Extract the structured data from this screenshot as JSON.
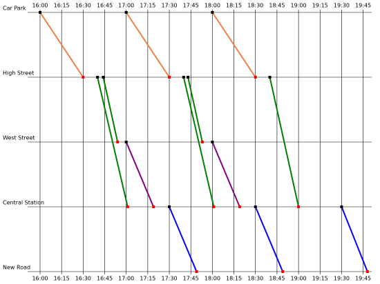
{
  "chart_data": {
    "type": "timetable",
    "categories": [
      "Car Park",
      "High Street",
      "West Street",
      "Central Station",
      "New Road"
    ],
    "xlim": [
      960,
      1190
    ],
    "xticks": [
      {
        "value": 960,
        "label": "16:00"
      },
      {
        "value": 975,
        "label": "16:15"
      },
      {
        "value": 990,
        "label": "16:30"
      },
      {
        "value": 1005,
        "label": "16:45"
      },
      {
        "value": 1020,
        "label": "17:00"
      },
      {
        "value": 1035,
        "label": "17:15"
      },
      {
        "value": 1050,
        "label": "17:30"
      },
      {
        "value": 1065,
        "label": "17:45"
      },
      {
        "value": 1080,
        "label": "18:00"
      },
      {
        "value": 1095,
        "label": "18:15"
      },
      {
        "value": 1110,
        "label": "18:30"
      },
      {
        "value": 1125,
        "label": "18:45"
      },
      {
        "value": 1140,
        "label": "19:00"
      },
      {
        "value": 1155,
        "label": "19:15"
      },
      {
        "value": 1170,
        "label": "19:30"
      },
      {
        "value": 1185,
        "label": "19:45"
      }
    ],
    "grid": true,
    "start_color": "#000000",
    "end_color": "#ff0000",
    "series": [
      {
        "color": "#f07f3c",
        "x": [
          960,
          990
        ],
        "values": [
          0,
          1
        ]
      },
      {
        "color": "#f07f3c",
        "x": [
          1020,
          1050
        ],
        "values": [
          0,
          1
        ]
      },
      {
        "color": "#f07f3c",
        "x": [
          1080,
          1110
        ],
        "values": [
          0,
          1
        ]
      },
      {
        "color": "#008000",
        "x": [
          1000,
          1021
        ],
        "values": [
          1,
          3
        ]
      },
      {
        "color": "#008000",
        "x": [
          1004,
          1014
        ],
        "values": [
          1,
          2
        ]
      },
      {
        "color": "#008000",
        "x": [
          1060,
          1081
        ],
        "values": [
          1,
          3
        ]
      },
      {
        "color": "#008000",
        "x": [
          1063,
          1073
        ],
        "values": [
          1,
          2
        ]
      },
      {
        "color": "#008000",
        "x": [
          1120,
          1140
        ],
        "values": [
          1,
          3
        ]
      },
      {
        "color": "#800080",
        "x": [
          1020,
          1039
        ],
        "values": [
          2,
          3
        ]
      },
      {
        "color": "#800080",
        "x": [
          1080,
          1099
        ],
        "values": [
          2,
          3
        ]
      },
      {
        "color": "#0000ff",
        "x": [
          1050,
          1069
        ],
        "values": [
          3,
          4
        ]
      },
      {
        "color": "#0000ff",
        "x": [
          1110,
          1129
        ],
        "values": [
          3,
          4
        ]
      },
      {
        "color": "#0000ff",
        "x": [
          1170,
          1188
        ],
        "values": [
          3,
          4
        ]
      }
    ]
  }
}
